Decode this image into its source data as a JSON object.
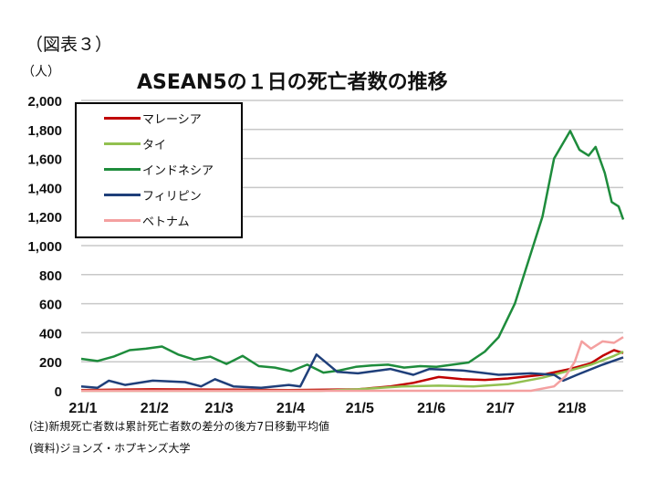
{
  "figure_label": "（図表３）",
  "footnotes": {
    "note": "(注)新規死亡者数は累計死亡者数の差分の後方7日移動平均値",
    "source": "(資料)ジョンズ・ホプキンズ大学"
  },
  "chart_data": {
    "type": "line",
    "title": "ASEAN5の１日の死亡者数の推移",
    "ylabel": "（人）",
    "xlabel": "",
    "ylim": [
      0,
      2000
    ],
    "yticks": [
      0,
      200,
      400,
      600,
      800,
      1000,
      1200,
      1400,
      1600,
      1800,
      2000
    ],
    "ytick_labels": [
      "0",
      "200",
      "400",
      "600",
      "800",
      "1,000",
      "1,200",
      "1,400",
      "1,600",
      "1,800",
      "2,000"
    ],
    "xlim": [
      "2021-01-01",
      "2021-08-24"
    ],
    "xticks": [
      "2021-01-01",
      "2021-02-01",
      "2021-03-01",
      "2021-04-01",
      "2021-05-01",
      "2021-06-01",
      "2021-07-01",
      "2021-08-01"
    ],
    "xtick_labels": [
      "21/1",
      "21/2",
      "21/3",
      "21/4",
      "21/5",
      "21/6",
      "21/7",
      "21/8"
    ],
    "grid": "horizontal",
    "legend_position": "top-left",
    "series": [
      {
        "name": "マレーシア",
        "color": "#c00000",
        "points": [
          [
            "2021-01-01",
            5
          ],
          [
            "2021-02-01",
            10
          ],
          [
            "2021-03-01",
            8
          ],
          [
            "2021-04-01",
            5
          ],
          [
            "2021-05-01",
            10
          ],
          [
            "2021-05-15",
            30
          ],
          [
            "2021-05-25",
            55
          ],
          [
            "2021-06-05",
            95
          ],
          [
            "2021-06-15",
            80
          ],
          [
            "2021-06-25",
            75
          ],
          [
            "2021-07-05",
            85
          ],
          [
            "2021-07-20",
            110
          ],
          [
            "2021-08-01",
            150
          ],
          [
            "2021-08-10",
            190
          ],
          [
            "2021-08-15",
            240
          ],
          [
            "2021-08-20",
            280
          ],
          [
            "2021-08-24",
            260
          ]
        ]
      },
      {
        "name": "タイ",
        "color": "#92c050",
        "points": [
          [
            "2021-01-01",
            0
          ],
          [
            "2021-04-15",
            0
          ],
          [
            "2021-05-01",
            10
          ],
          [
            "2021-05-20",
            30
          ],
          [
            "2021-06-05",
            35
          ],
          [
            "2021-06-20",
            30
          ],
          [
            "2021-07-05",
            45
          ],
          [
            "2021-07-20",
            90
          ],
          [
            "2021-08-01",
            140
          ],
          [
            "2021-08-10",
            180
          ],
          [
            "2021-08-20",
            240
          ],
          [
            "2021-08-24",
            270
          ]
        ]
      },
      {
        "name": "インドネシア",
        "color": "#1e8c3c",
        "points": [
          [
            "2021-01-01",
            220
          ],
          [
            "2021-01-08",
            205
          ],
          [
            "2021-01-15",
            235
          ],
          [
            "2021-01-22",
            280
          ],
          [
            "2021-01-29",
            290
          ],
          [
            "2021-02-05",
            305
          ],
          [
            "2021-02-12",
            250
          ],
          [
            "2021-02-19",
            215
          ],
          [
            "2021-02-26",
            235
          ],
          [
            "2021-03-05",
            185
          ],
          [
            "2021-03-12",
            240
          ],
          [
            "2021-03-19",
            170
          ],
          [
            "2021-03-26",
            160
          ],
          [
            "2021-04-02",
            135
          ],
          [
            "2021-04-09",
            180
          ],
          [
            "2021-04-16",
            125
          ],
          [
            "2021-04-23",
            140
          ],
          [
            "2021-04-30",
            165
          ],
          [
            "2021-05-07",
            175
          ],
          [
            "2021-05-14",
            180
          ],
          [
            "2021-05-21",
            160
          ],
          [
            "2021-05-28",
            170
          ],
          [
            "2021-06-04",
            165
          ],
          [
            "2021-06-11",
            180
          ],
          [
            "2021-06-18",
            195
          ],
          [
            "2021-06-25",
            270
          ],
          [
            "2021-07-01",
            370
          ],
          [
            "2021-07-08",
            600
          ],
          [
            "2021-07-14",
            900
          ],
          [
            "2021-07-20",
            1200
          ],
          [
            "2021-07-25",
            1600
          ],
          [
            "2021-08-01",
            1790
          ],
          [
            "2021-08-05",
            1660
          ],
          [
            "2021-08-09",
            1620
          ],
          [
            "2021-08-12",
            1680
          ],
          [
            "2021-08-16",
            1500
          ],
          [
            "2021-08-19",
            1300
          ],
          [
            "2021-08-22",
            1270
          ],
          [
            "2021-08-24",
            1180
          ]
        ]
      },
      {
        "name": "フィリピン",
        "color": "#1f3f7a",
        "points": [
          [
            "2021-01-01",
            30
          ],
          [
            "2021-01-08",
            20
          ],
          [
            "2021-01-13",
            70
          ],
          [
            "2021-01-20",
            40
          ],
          [
            "2021-02-01",
            70
          ],
          [
            "2021-02-15",
            60
          ],
          [
            "2021-02-22",
            30
          ],
          [
            "2021-02-28",
            80
          ],
          [
            "2021-03-08",
            30
          ],
          [
            "2021-03-20",
            20
          ],
          [
            "2021-04-01",
            40
          ],
          [
            "2021-04-06",
            30
          ],
          [
            "2021-04-13",
            250
          ],
          [
            "2021-04-22",
            130
          ],
          [
            "2021-05-01",
            120
          ],
          [
            "2021-05-15",
            150
          ],
          [
            "2021-05-25",
            110
          ],
          [
            "2021-06-01",
            150
          ],
          [
            "2021-06-15",
            140
          ],
          [
            "2021-07-01",
            110
          ],
          [
            "2021-07-15",
            120
          ],
          [
            "2021-07-25",
            110
          ],
          [
            "2021-07-29",
            70
          ],
          [
            "2021-08-04",
            110
          ],
          [
            "2021-08-15",
            180
          ],
          [
            "2021-08-24",
            230
          ]
        ]
      },
      {
        "name": "ベトナム",
        "color": "#f4a0a0",
        "points": [
          [
            "2021-01-01",
            0
          ],
          [
            "2021-07-15",
            0
          ],
          [
            "2021-07-25",
            30
          ],
          [
            "2021-07-30",
            100
          ],
          [
            "2021-08-03",
            200
          ],
          [
            "2021-08-06",
            340
          ],
          [
            "2021-08-10",
            290
          ],
          [
            "2021-08-15",
            340
          ],
          [
            "2021-08-20",
            330
          ],
          [
            "2021-08-24",
            370
          ]
        ]
      }
    ]
  }
}
